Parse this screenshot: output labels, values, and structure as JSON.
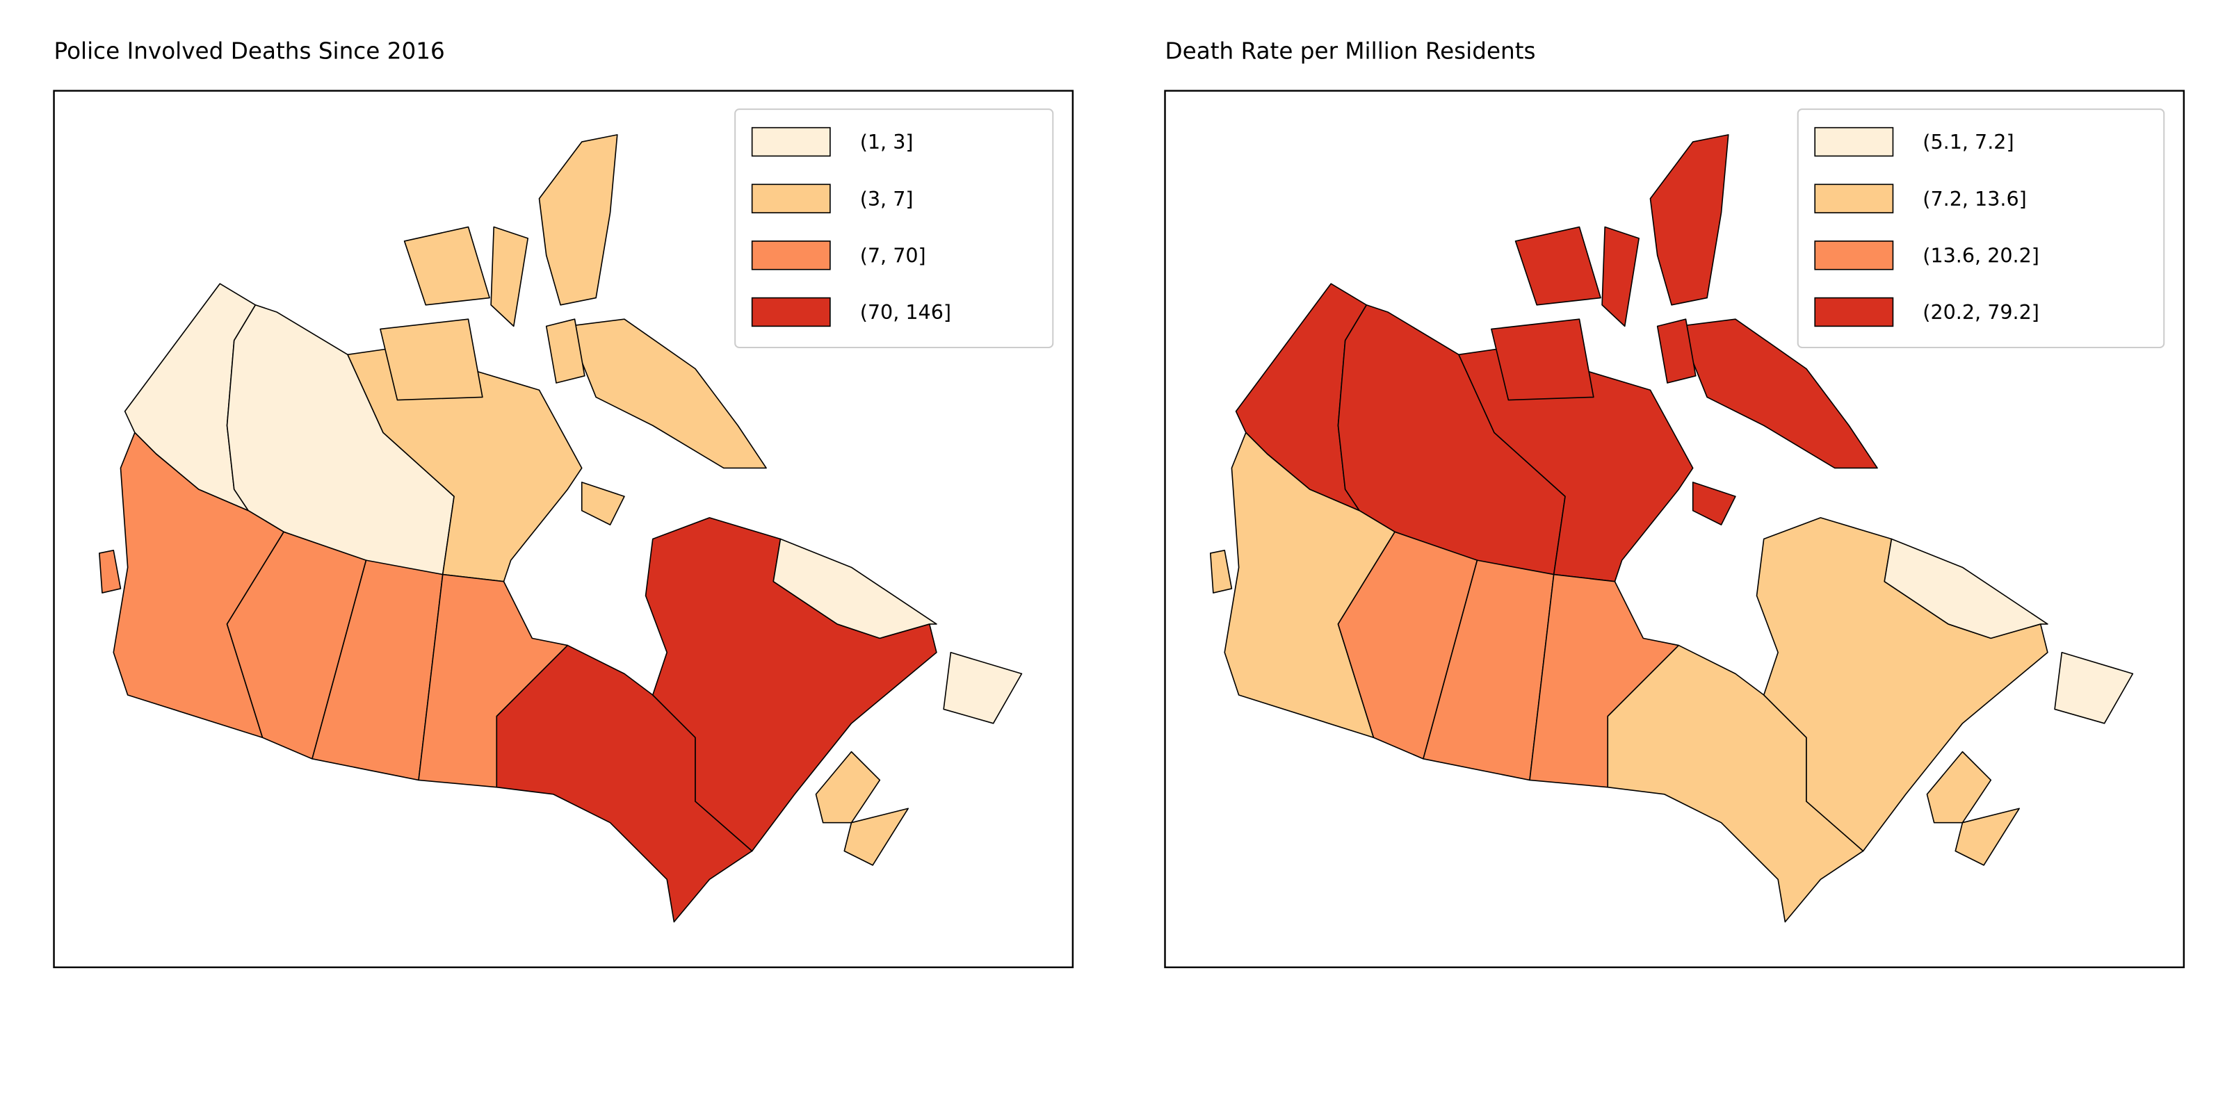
{
  "maps": [
    {
      "title": "Police Involved Deaths Since 2016",
      "legend": [
        {
          "label": "(1, 3]",
          "color": "#fef0d9"
        },
        {
          "label": "(3, 7]",
          "color": "#fdcc8a"
        },
        {
          "label": "(7, 70]",
          "color": "#fc8d59"
        },
        {
          "label": "(70, 146]",
          "color": "#d7301f"
        }
      ]
    },
    {
      "title": "Death Rate per Million Residents",
      "legend": [
        {
          "label": "(5.1, 7.2]",
          "color": "#fef0d9"
        },
        {
          "label": "(7.2, 13.6]",
          "color": "#fdcc8a"
        },
        {
          "label": "(13.6, 20.2]",
          "color": "#fc8d59"
        },
        {
          "label": "(20.2, 79.2]",
          "color": "#d7301f"
        }
      ]
    }
  ]
}
